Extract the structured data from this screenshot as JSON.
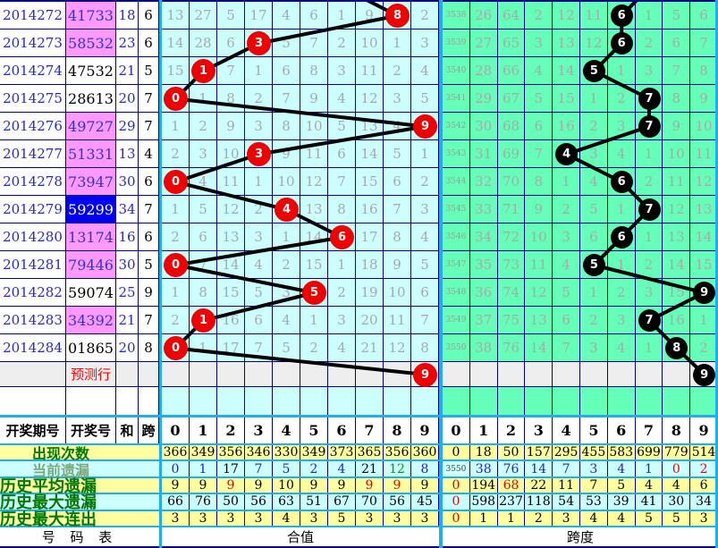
{
  "left_table": {
    "headers": {
      "period": "开奖期号",
      "number": "开奖号",
      "sum": "和",
      "span": "跨"
    },
    "rows": [
      {
        "period": "2014272",
        "number": "41733",
        "sum": "18",
        "span": "6",
        "hl": "p"
      },
      {
        "period": "2014273",
        "number": "58532",
        "sum": "23",
        "span": "6",
        "hl": "p"
      },
      {
        "period": "2014274",
        "number": "47532",
        "sum": "21",
        "span": "5",
        "hl": "w"
      },
      {
        "period": "2014275",
        "number": "28613",
        "sum": "20",
        "span": "7",
        "hl": "w"
      },
      {
        "period": "2014276",
        "number": "49727",
        "sum": "29",
        "span": "7",
        "hl": "p"
      },
      {
        "period": "2014277",
        "number": "51331",
        "sum": "13",
        "span": "4",
        "hl": "p"
      },
      {
        "period": "2014278",
        "number": "73947",
        "sum": "30",
        "span": "6",
        "hl": "p"
      },
      {
        "period": "2014279",
        "number": "59299",
        "sum": "34",
        "span": "7",
        "hl": "b"
      },
      {
        "period": "2014280",
        "number": "13174",
        "sum": "16",
        "span": "6",
        "hl": "p"
      },
      {
        "period": "2014281",
        "number": "79446",
        "sum": "30",
        "span": "5",
        "hl": "p"
      },
      {
        "period": "2014282",
        "number": "59074",
        "sum": "25",
        "span": "9",
        "hl": "w"
      },
      {
        "period": "2014283",
        "number": "34392",
        "sum": "21",
        "span": "7",
        "hl": "p"
      },
      {
        "period": "2014284",
        "number": "01865",
        "sum": "20",
        "span": "8",
        "hl": "w"
      }
    ],
    "prediction_label": "预测行",
    "footer_label": "号 码 表"
  },
  "stats_labels": [
    "出现次数",
    "当前遗漏",
    "历史平均遗漏",
    "历史最大遗漏",
    "历史最大连出"
  ],
  "chart_data": [
    {
      "type": "trend-grid",
      "title": "合值",
      "ball_color": "#f00000",
      "columns": [
        "0",
        "1",
        "2",
        "3",
        "4",
        "5",
        "6",
        "7",
        "8",
        "9"
      ],
      "rows": [
        {
          "cells": [
            13,
            27,
            5,
            17,
            4,
            6,
            1,
            9,
            null,
            2
          ],
          "ball": 8
        },
        {
          "cells": [
            14,
            28,
            6,
            null,
            5,
            7,
            2,
            10,
            1,
            3
          ],
          "ball": 3
        },
        {
          "cells": [
            15,
            null,
            7,
            1,
            6,
            8,
            3,
            11,
            2,
            4
          ],
          "ball": 1
        },
        {
          "cells": [
            null,
            1,
            8,
            2,
            7,
            9,
            4,
            12,
            3,
            5
          ],
          "ball": 0
        },
        {
          "cells": [
            1,
            2,
            9,
            3,
            8,
            10,
            5,
            13,
            4,
            null
          ],
          "ball": 9
        },
        {
          "cells": [
            2,
            3,
            10,
            null,
            9,
            11,
            6,
            14,
            5,
            1
          ],
          "ball": 3
        },
        {
          "cells": [
            null,
            4,
            11,
            1,
            10,
            12,
            7,
            15,
            6,
            2
          ],
          "ball": 0
        },
        {
          "cells": [
            1,
            5,
            12,
            2,
            null,
            13,
            8,
            16,
            7,
            3
          ],
          "ball": 4
        },
        {
          "cells": [
            2,
            6,
            13,
            3,
            1,
            14,
            null,
            17,
            8,
            4
          ],
          "ball": 6
        },
        {
          "cells": [
            null,
            7,
            14,
            4,
            2,
            15,
            1,
            18,
            9,
            5
          ],
          "ball": 0
        },
        {
          "cells": [
            1,
            8,
            15,
            5,
            3,
            null,
            2,
            19,
            10,
            6
          ],
          "ball": 5
        },
        {
          "cells": [
            2,
            null,
            16,
            6,
            4,
            1,
            3,
            20,
            11,
            7
          ],
          "ball": 1
        },
        {
          "cells": [
            null,
            1,
            17,
            7,
            5,
            2,
            4,
            21,
            12,
            8
          ],
          "ball": 0
        }
      ],
      "prediction_ball": 9,
      "incoming_from_col": 6,
      "stats": {
        "appear": [
          366,
          349,
          356,
          346,
          330,
          349,
          373,
          365,
          356,
          360
        ],
        "current_miss": [
          0,
          1,
          17,
          7,
          5,
          2,
          4,
          21,
          12,
          8
        ],
        "current_miss_colors": [
          "u",
          "u",
          "k",
          "u",
          "u",
          "u",
          "u",
          "k",
          "g",
          "u"
        ],
        "avg_miss": [
          9,
          9,
          9,
          9,
          10,
          9,
          9,
          9,
          9,
          9
        ],
        "avg_miss_colors": [
          "k",
          "k",
          "r",
          "k",
          "k",
          "k",
          "k",
          "r",
          "r",
          "k"
        ],
        "max_miss": [
          66,
          76,
          50,
          56,
          63,
          51,
          67,
          70,
          56,
          45
        ],
        "max_miss_colors": [
          "k",
          "k",
          "k",
          "k",
          "k",
          "k",
          "k",
          "k",
          "k",
          "k"
        ],
        "max_streak": [
          3,
          3,
          3,
          3,
          4,
          3,
          5,
          3,
          3,
          3
        ],
        "max_streak_colors": [
          "k",
          "k",
          "k",
          "k",
          "k",
          "k",
          "k",
          "k",
          "k",
          "k"
        ]
      }
    },
    {
      "type": "trend-grid",
      "title": "跨度",
      "ball_color": "#000000",
      "columns": [
        "0",
        "1",
        "2",
        "3",
        "4",
        "5",
        "6",
        "7",
        "8",
        "9"
      ],
      "rows": [
        {
          "cells": [
            3538,
            26,
            64,
            2,
            12,
            11,
            null,
            1,
            5,
            6
          ],
          "ball": 6
        },
        {
          "cells": [
            3539,
            27,
            65,
            3,
            13,
            12,
            null,
            2,
            6,
            7
          ],
          "ball": 6
        },
        {
          "cells": [
            3540,
            28,
            66,
            4,
            14,
            null,
            1,
            3,
            7,
            8
          ],
          "ball": 5
        },
        {
          "cells": [
            3541,
            29,
            67,
            5,
            15,
            1,
            2,
            null,
            8,
            9
          ],
          "ball": 7
        },
        {
          "cells": [
            3542,
            30,
            68,
            6,
            16,
            2,
            3,
            null,
            9,
            10
          ],
          "ball": 7
        },
        {
          "cells": [
            3543,
            31,
            69,
            7,
            null,
            3,
            4,
            1,
            10,
            11
          ],
          "ball": 4
        },
        {
          "cells": [
            3544,
            32,
            70,
            8,
            1,
            4,
            null,
            2,
            11,
            12
          ],
          "ball": 6
        },
        {
          "cells": [
            3545,
            33,
            71,
            9,
            2,
            5,
            1,
            null,
            12,
            13
          ],
          "ball": 7
        },
        {
          "cells": [
            3546,
            34,
            72,
            10,
            3,
            6,
            null,
            1,
            13,
            14
          ],
          "ball": 6
        },
        {
          "cells": [
            3547,
            35,
            73,
            11,
            4,
            null,
            1,
            2,
            14,
            15
          ],
          "ball": 5
        },
        {
          "cells": [
            3548,
            36,
            74,
            12,
            5,
            1,
            2,
            3,
            15,
            null
          ],
          "ball": 9
        },
        {
          "cells": [
            3549,
            37,
            75,
            13,
            6,
            2,
            3,
            null,
            16,
            1
          ],
          "ball": 7
        },
        {
          "cells": [
            3550,
            38,
            76,
            14,
            7,
            3,
            4,
            1,
            null,
            2
          ],
          "ball": 8
        }
      ],
      "prediction_ball": 9,
      "incoming_from_col": 7,
      "stats": {
        "appear": [
          0,
          18,
          50,
          157,
          295,
          455,
          583,
          699,
          779,
          514
        ],
        "current_miss": [
          3550,
          38,
          76,
          14,
          7,
          3,
          4,
          1,
          0,
          2
        ],
        "current_miss_colors": [
          "t",
          "u",
          "u",
          "u",
          "u",
          "u",
          "u",
          "u",
          "r",
          "r"
        ],
        "avg_miss": [
          0,
          194,
          68,
          22,
          11,
          7,
          5,
          4,
          4,
          6
        ],
        "avg_miss_colors": [
          "r",
          "k",
          "r",
          "k",
          "k",
          "k",
          "k",
          "k",
          "k",
          "k"
        ],
        "max_miss": [
          0,
          598,
          237,
          118,
          54,
          53,
          39,
          41,
          30,
          34
        ],
        "max_miss_colors": [
          "r",
          "k",
          "k",
          "k",
          "k",
          "k",
          "k",
          "k",
          "k",
          "k"
        ],
        "max_streak": [
          0,
          1,
          1,
          2,
          3,
          4,
          4,
          5,
          5,
          3
        ],
        "max_streak_colors": [
          "r",
          "k",
          "k",
          "k",
          "k",
          "k",
          "k",
          "k",
          "k",
          "k"
        ]
      }
    }
  ],
  "colors": {
    "mid_bg": "#ccffff",
    "right_bg": "#66ffb9",
    "grid": "#000080",
    "divider": "#1faee8",
    "pink": "#ff99ff",
    "selected_blue": "#0000ee",
    "pred_bg": "#eeeeee",
    "stats_yellow": "#ffffa0",
    "stats_cyan": "#ccffff",
    "ball_red": "#f00000",
    "ball_black": "#000000"
  }
}
